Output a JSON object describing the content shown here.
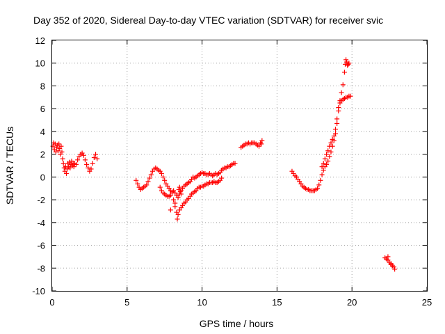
{
  "chart_data": {
    "type": "scatter",
    "title": "Day 352 of 2020, Sidereal Day-to-day VTEC variation (SDTVAR) for receiver svic",
    "xlabel": "GPS time / hours",
    "ylabel": "SDTVAR / TECUs",
    "xlim": [
      0,
      25
    ],
    "ylim": [
      -10,
      12
    ],
    "xticks": [
      0,
      5,
      10,
      15,
      20,
      25
    ],
    "yticks": [
      -10,
      -8,
      -6,
      -4,
      -2,
      0,
      2,
      4,
      6,
      8,
      10,
      12
    ],
    "xtick_labels": [
      "0",
      "5",
      "10",
      "15",
      "20",
      "25"
    ],
    "ytick_labels": [
      "-10",
      "-8",
      "-6",
      "-4",
      "-2",
      "0",
      "2",
      "4",
      "6",
      "8",
      "10",
      "12"
    ],
    "grid": true,
    "marker": "+",
    "color": "#ff0000",
    "series": [
      {
        "points": [
          [
            0.05,
            2.7
          ],
          [
            0.1,
            3.0
          ],
          [
            0.15,
            2.4
          ],
          [
            0.2,
            2.9
          ],
          [
            0.25,
            2.2
          ],
          [
            0.3,
            2.6
          ],
          [
            0.35,
            2.8
          ],
          [
            0.4,
            2.3
          ],
          [
            0.45,
            2.9
          ],
          [
            0.5,
            2.5
          ],
          [
            0.55,
            2.0
          ],
          [
            0.6,
            2.7
          ],
          [
            0.65,
            2.2
          ],
          [
            0.7,
            1.6
          ],
          [
            0.75,
            1.2
          ],
          [
            0.8,
            0.8
          ],
          [
            0.85,
            0.5
          ],
          [
            0.9,
            0.9
          ],
          [
            0.95,
            0.3
          ],
          [
            1.0,
            0.7
          ],
          [
            1.05,
            1.2
          ],
          [
            1.1,
            0.9
          ],
          [
            1.15,
            1.3
          ],
          [
            1.2,
            0.8
          ],
          [
            1.25,
            1.1
          ],
          [
            1.3,
            1.4
          ],
          [
            1.35,
            1.0
          ],
          [
            1.4,
            1.2
          ],
          [
            1.45,
            0.9
          ],
          [
            1.5,
            1.2
          ],
          [
            1.6,
            1.1
          ],
          [
            1.7,
            1.5
          ],
          [
            1.8,
            1.8
          ],
          [
            1.9,
            2.0
          ],
          [
            2.0,
            2.1
          ],
          [
            2.1,
            1.9
          ],
          [
            2.2,
            1.5
          ],
          [
            2.3,
            1.1
          ],
          [
            2.4,
            0.8
          ],
          [
            2.5,
            0.5
          ],
          [
            2.6,
            0.7
          ],
          [
            2.7,
            1.2
          ],
          [
            2.8,
            1.7
          ],
          [
            2.9,
            2.0
          ],
          [
            3.0,
            1.6
          ]
        ]
      },
      {
        "points": [
          [
            5.6,
            -0.3
          ],
          [
            5.7,
            -0.6
          ],
          [
            5.8,
            -0.9
          ],
          [
            5.9,
            -1.1
          ],
          [
            6.0,
            -1.0
          ],
          [
            6.1,
            -0.9
          ],
          [
            6.2,
            -0.8
          ],
          [
            6.3,
            -0.7
          ],
          [
            6.4,
            -0.4
          ],
          [
            6.5,
            -0.1
          ],
          [
            6.6,
            0.2
          ],
          [
            6.7,
            0.5
          ],
          [
            6.8,
            0.7
          ],
          [
            6.9,
            0.8
          ],
          [
            7.0,
            0.7
          ],
          [
            7.1,
            0.6
          ],
          [
            7.2,
            0.5
          ],
          [
            7.3,
            0.3
          ],
          [
            7.4,
            0.0
          ],
          [
            7.5,
            -0.3
          ],
          [
            7.6,
            -0.6
          ],
          [
            7.7,
            -0.8
          ],
          [
            7.8,
            -1.0
          ],
          [
            7.9,
            -1.2
          ],
          [
            8.0,
            -1.3
          ],
          [
            8.1,
            -1.2
          ],
          [
            8.2,
            -1.4
          ],
          [
            8.3,
            -1.6
          ],
          [
            8.4,
            -1.8
          ],
          [
            8.5,
            -1.5
          ],
          [
            8.6,
            -1.2
          ],
          [
            8.7,
            -1.0
          ],
          [
            8.8,
            -0.8
          ],
          [
            8.9,
            -0.7
          ],
          [
            9.0,
            -0.6
          ],
          [
            9.1,
            -0.5
          ],
          [
            9.2,
            -0.4
          ],
          [
            9.3,
            -0.2
          ],
          [
            9.4,
            0.0
          ],
          [
            9.5,
            -0.1
          ],
          [
            9.6,
            0.0
          ],
          [
            9.7,
            0.1
          ],
          [
            9.8,
            0.2
          ],
          [
            9.9,
            0.3
          ],
          [
            10.0,
            0.4
          ],
          [
            10.1,
            0.3
          ],
          [
            10.2,
            0.3
          ],
          [
            10.3,
            0.2
          ],
          [
            10.4,
            0.2
          ],
          [
            10.5,
            0.3
          ],
          [
            10.6,
            0.2
          ],
          [
            10.7,
            0.1
          ],
          [
            10.8,
            0.2
          ],
          [
            10.9,
            0.3
          ],
          [
            11.0,
            0.2
          ],
          [
            11.1,
            0.3
          ],
          [
            11.2,
            0.4
          ],
          [
            11.3,
            0.6
          ],
          [
            11.4,
            0.7
          ],
          [
            11.5,
            0.8
          ],
          [
            11.6,
            0.8
          ],
          [
            11.7,
            0.9
          ],
          [
            11.8,
            0.9
          ],
          [
            11.9,
            1.0
          ],
          [
            12.0,
            1.1
          ],
          [
            12.1,
            1.2
          ],
          [
            12.2,
            1.2
          ]
        ]
      },
      {
        "points": [
          [
            7.2,
            -0.9
          ],
          [
            7.3,
            -1.2
          ],
          [
            7.4,
            -1.4
          ],
          [
            7.5,
            -1.5
          ],
          [
            7.6,
            -1.6
          ],
          [
            7.7,
            -1.7
          ],
          [
            7.8,
            -1.7
          ],
          [
            7.9,
            -1.6
          ],
          [
            8.0,
            -1.4
          ],
          [
            8.1,
            -2.0
          ],
          [
            8.2,
            -2.6
          ],
          [
            8.3,
            -3.1
          ],
          [
            8.35,
            -3.7
          ],
          [
            8.4,
            -3.3
          ],
          [
            8.5,
            -2.9
          ],
          [
            8.6,
            -2.7
          ],
          [
            8.7,
            -2.5
          ],
          [
            8.8,
            -2.3
          ],
          [
            8.9,
            -2.2
          ],
          [
            9.0,
            -2.0
          ],
          [
            9.1,
            -1.9
          ],
          [
            9.2,
            -1.7
          ],
          [
            9.3,
            -1.5
          ],
          [
            9.4,
            -1.4
          ],
          [
            9.5,
            -1.3
          ],
          [
            9.6,
            -1.2
          ],
          [
            9.7,
            -1.0
          ],
          [
            9.8,
            -0.9
          ],
          [
            9.9,
            -0.9
          ],
          [
            10.0,
            -0.8
          ],
          [
            10.1,
            -0.8
          ],
          [
            10.2,
            -0.7
          ],
          [
            10.3,
            -0.6
          ],
          [
            10.4,
            -0.6
          ],
          [
            10.5,
            -0.5
          ],
          [
            10.6,
            -0.5
          ],
          [
            10.7,
            -0.5
          ],
          [
            10.8,
            -0.4
          ],
          [
            10.9,
            -0.5
          ],
          [
            11.0,
            -0.5
          ],
          [
            11.1,
            -0.4
          ],
          [
            11.2,
            -0.3
          ],
          [
            11.3,
            -0.1
          ],
          [
            8.45,
            -1.1
          ],
          [
            8.5,
            -0.9
          ],
          [
            8.55,
            -1.3
          ],
          [
            8.6,
            -1.5
          ],
          [
            8.2,
            -2.3
          ],
          [
            7.9,
            -2.9
          ]
        ]
      },
      {
        "points": [
          [
            12.6,
            2.6
          ],
          [
            12.7,
            2.7
          ],
          [
            12.8,
            2.8
          ],
          [
            12.9,
            2.9
          ],
          [
            13.0,
            2.9
          ],
          [
            13.1,
            3.0
          ],
          [
            13.2,
            2.9
          ],
          [
            13.3,
            3.0
          ],
          [
            13.4,
            3.0
          ],
          [
            13.5,
            3.0
          ],
          [
            13.6,
            2.9
          ],
          [
            13.7,
            2.8
          ],
          [
            13.8,
            2.7
          ],
          [
            13.9,
            3.0
          ],
          [
            14.0,
            3.2
          ],
          [
            13.95,
            2.9
          ]
        ]
      },
      {
        "points": [
          [
            16.0,
            0.5
          ],
          [
            16.1,
            0.3
          ],
          [
            16.2,
            0.1
          ],
          [
            16.3,
            0.0
          ],
          [
            16.4,
            -0.2
          ],
          [
            16.5,
            -0.4
          ],
          [
            16.6,
            -0.6
          ],
          [
            16.7,
            -0.8
          ],
          [
            16.8,
            -0.9
          ],
          [
            16.9,
            -1.0
          ],
          [
            17.0,
            -1.1
          ],
          [
            17.1,
            -1.1
          ],
          [
            17.2,
            -1.2
          ],
          [
            17.3,
            -1.2
          ],
          [
            17.4,
            -1.2
          ],
          [
            17.5,
            -1.2
          ],
          [
            17.6,
            -1.1
          ],
          [
            17.7,
            -1.0
          ],
          [
            17.8,
            -0.7
          ],
          [
            17.9,
            -0.3
          ],
          [
            18.0,
            0.2
          ],
          [
            18.1,
            0.6
          ],
          [
            18.2,
            0.9
          ],
          [
            18.3,
            1.1
          ],
          [
            18.4,
            1.4
          ],
          [
            18.5,
            1.8
          ],
          [
            18.6,
            2.2
          ],
          [
            18.7,
            2.7
          ],
          [
            18.8,
            3.2
          ],
          [
            18.9,
            3.8
          ],
          [
            19.0,
            4.7
          ],
          [
            19.1,
            5.8
          ],
          [
            19.2,
            6.7
          ],
          [
            19.3,
            7.4
          ],
          [
            19.4,
            8.1
          ],
          [
            19.5,
            9.2
          ],
          [
            19.55,
            9.9
          ],
          [
            19.6,
            10.3
          ],
          [
            19.65,
            10.1
          ],
          [
            19.7,
            9.8
          ],
          [
            18.0,
            0.9
          ],
          [
            18.1,
            1.2
          ],
          [
            18.2,
            1.6
          ],
          [
            18.3,
            2.0
          ],
          [
            18.4,
            2.3
          ],
          [
            18.5,
            2.7
          ],
          [
            18.6,
            3.0
          ],
          [
            18.7,
            3.3
          ],
          [
            18.8,
            3.6
          ],
          [
            18.9,
            4.2
          ],
          [
            19.0,
            5.1
          ],
          [
            19.1,
            6.1
          ],
          [
            19.2,
            6.5
          ],
          [
            19.3,
            6.7
          ],
          [
            19.4,
            6.8
          ],
          [
            19.5,
            6.9
          ],
          [
            19.6,
            7.0
          ],
          [
            19.7,
            7.0
          ],
          [
            19.8,
            7.1
          ],
          [
            19.9,
            7.1
          ],
          [
            19.75,
            9.9
          ],
          [
            19.8,
            10.0
          ]
        ]
      },
      {
        "points": [
          [
            22.2,
            -7.1
          ],
          [
            22.3,
            -7.2
          ],
          [
            22.4,
            -7.3
          ],
          [
            22.5,
            -7.5
          ],
          [
            22.6,
            -7.6
          ],
          [
            22.7,
            -7.8
          ],
          [
            22.8,
            -7.9
          ],
          [
            22.85,
            -8.1
          ],
          [
            22.4,
            -7.0
          ],
          [
            22.6,
            -7.7
          ]
        ]
      }
    ]
  }
}
